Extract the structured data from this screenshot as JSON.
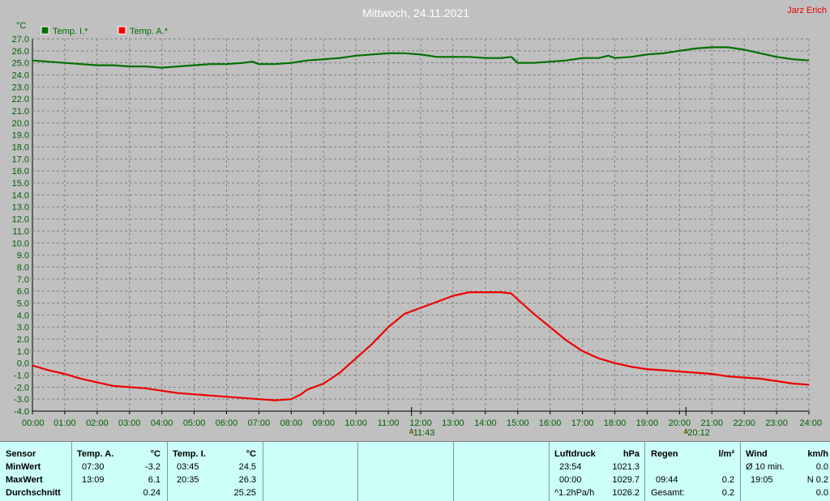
{
  "title": "Mittwoch, 24.11.2021",
  "author": "Jarz Erich",
  "colors": {
    "indoor": "#007000",
    "outdoor": "#ee0000",
    "author": "#ee0000",
    "background": "#c0c0c0",
    "table": "#ccfff9"
  },
  "chart_data": {
    "type": "line",
    "unit_label": "°C",
    "ylim": [
      -4.0,
      27.0
    ],
    "y_step": 1.0,
    "x_ticks": [
      "00:00",
      "01:00",
      "02:00",
      "03:00",
      "04:00",
      "05:00",
      "06:00",
      "07:00",
      "08:00",
      "09:00",
      "10:00",
      "11:00",
      "12:00",
      "13:00",
      "14:00",
      "15:00",
      "16:00",
      "17:00",
      "18:00",
      "19:00",
      "20:00",
      "21:00",
      "22:00",
      "23:00",
      "24:00"
    ],
    "grid": true,
    "legend_position": "top-left",
    "sun_markers": [
      "11:43",
      "20:12"
    ],
    "series": [
      {
        "name": "Temp. I.*",
        "color": "#007000",
        "x": [
          0,
          0.5,
          1,
          1.5,
          2,
          2.5,
          3,
          3.5,
          4,
          4.5,
          5,
          5.5,
          6,
          6.5,
          6.8,
          7,
          7.5,
          8,
          8.5,
          9,
          9.5,
          10,
          10.5,
          11,
          11.5,
          12,
          12.5,
          13,
          13.5,
          14,
          14.5,
          14.8,
          15,
          15.5,
          16,
          16.5,
          17,
          17.5,
          17.8,
          18,
          18.5,
          19,
          19.5,
          20,
          20.5,
          21,
          21.5,
          22,
          22.5,
          23,
          23.5,
          24
        ],
        "values": [
          25.2,
          25.1,
          25.0,
          24.9,
          24.8,
          24.8,
          24.7,
          24.7,
          24.6,
          24.7,
          24.8,
          24.9,
          24.9,
          25.0,
          25.1,
          24.9,
          24.9,
          25.0,
          25.2,
          25.3,
          25.4,
          25.6,
          25.7,
          25.8,
          25.8,
          25.7,
          25.5,
          25.5,
          25.5,
          25.4,
          25.4,
          25.5,
          25.0,
          25.0,
          25.1,
          25.2,
          25.4,
          25.4,
          25.6,
          25.4,
          25.5,
          25.7,
          25.8,
          26.0,
          26.2,
          26.3,
          26.3,
          26.1,
          25.8,
          25.5,
          25.3,
          25.2
        ]
      },
      {
        "name": "Temp. A.*",
        "color": "#ee0000",
        "x": [
          0,
          0.5,
          1,
          1.5,
          2,
          2.5,
          3,
          3.5,
          4,
          4.5,
          5,
          5.5,
          6,
          6.5,
          7,
          7.5,
          8,
          8.3,
          8.5,
          9,
          9.5,
          10,
          10.5,
          11,
          11.5,
          12,
          12.5,
          13,
          13.5,
          14,
          14.5,
          14.8,
          15,
          15.5,
          16,
          16.5,
          17,
          17.5,
          18,
          18.5,
          19,
          19.5,
          20,
          20.5,
          21,
          21.5,
          22,
          22.5,
          23,
          23.5,
          24
        ],
        "values": [
          -0.2,
          -0.6,
          -0.9,
          -1.3,
          -1.6,
          -1.9,
          -2.0,
          -2.1,
          -2.3,
          -2.5,
          -2.6,
          -2.7,
          -2.8,
          -2.9,
          -3.0,
          -3.1,
          -3.0,
          -2.6,
          -2.2,
          -1.7,
          -0.8,
          0.4,
          1.6,
          3.0,
          4.1,
          4.6,
          5.1,
          5.6,
          5.9,
          5.9,
          5.9,
          5.8,
          5.3,
          4.1,
          3.0,
          1.9,
          1.0,
          0.4,
          0.0,
          -0.3,
          -0.5,
          -0.6,
          -0.7,
          -0.8,
          -0.9,
          -1.1,
          -1.2,
          -1.3,
          -1.5,
          -1.7,
          -1.8
        ]
      }
    ]
  },
  "stats": {
    "sensor": {
      "header": "Sensor",
      "rows": [
        "MinWert",
        "MaxWert",
        "Durchschnitt"
      ]
    },
    "temp_a": {
      "header": "Temp. A.",
      "unit": "°C",
      "min_time": "07:30",
      "min_value": "-3.2",
      "max_time": "13:09",
      "max_value": "6.1",
      "avg": "0.24"
    },
    "temp_i": {
      "header": "Temp. I.",
      "unit": "°C",
      "min_time": "03:45",
      "min_value": "24.5",
      "max_time": "20:35",
      "max_value": "26.3",
      "avg": "25.25"
    },
    "luftdruck": {
      "header": "Luftdruck",
      "unit": "hPa",
      "min_time": "23:54",
      "min_value": "1021.3",
      "max_time": "00:00",
      "max_value": "1029.7",
      "trend_label": "^1.2hPa/h",
      "current": "1026.2"
    },
    "regen": {
      "header": "Regen",
      "unit": "l/m²",
      "time": "09:44",
      "value": "0.2",
      "total_label": "Gesamt:",
      "total": "0.2"
    },
    "wind": {
      "header": "Wind",
      "unit": "km/h",
      "avg_label": "Ø 10 min.",
      "avg_value": "0.0",
      "max_time": "19:05",
      "max_value": "N 0.2",
      "last_value": "0.0"
    }
  }
}
